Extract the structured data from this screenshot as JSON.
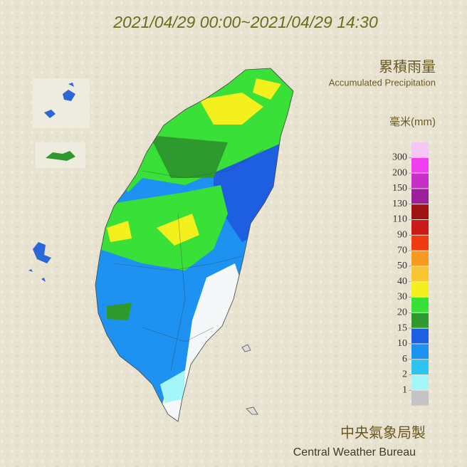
{
  "header": {
    "title": "2021/04/29 00:00~2021/04/29 14:30"
  },
  "legend": {
    "title": "累積雨量",
    "subtitle": "Accumulated Precipitation",
    "unit": "毫米(mm)",
    "levels": [
      300,
      200,
      150,
      130,
      110,
      90,
      70,
      50,
      40,
      30,
      20,
      15,
      10,
      6,
      2,
      1
    ],
    "colors": [
      "#f6c6f6",
      "#f23ef0",
      "#c82fc8",
      "#9c1f9c",
      "#9e1212",
      "#cc1a18",
      "#f03a12",
      "#f69a22",
      "#f8c632",
      "#f4f01e",
      "#38e038",
      "#2e9a2e",
      "#1e5ee0",
      "#1e92f0",
      "#2ec4f2",
      "#a4f6f8",
      "#c4c4c4"
    ]
  },
  "footer": {
    "agency": "中央氣象局製",
    "agency_en": "Central Weather Bureau"
  }
}
